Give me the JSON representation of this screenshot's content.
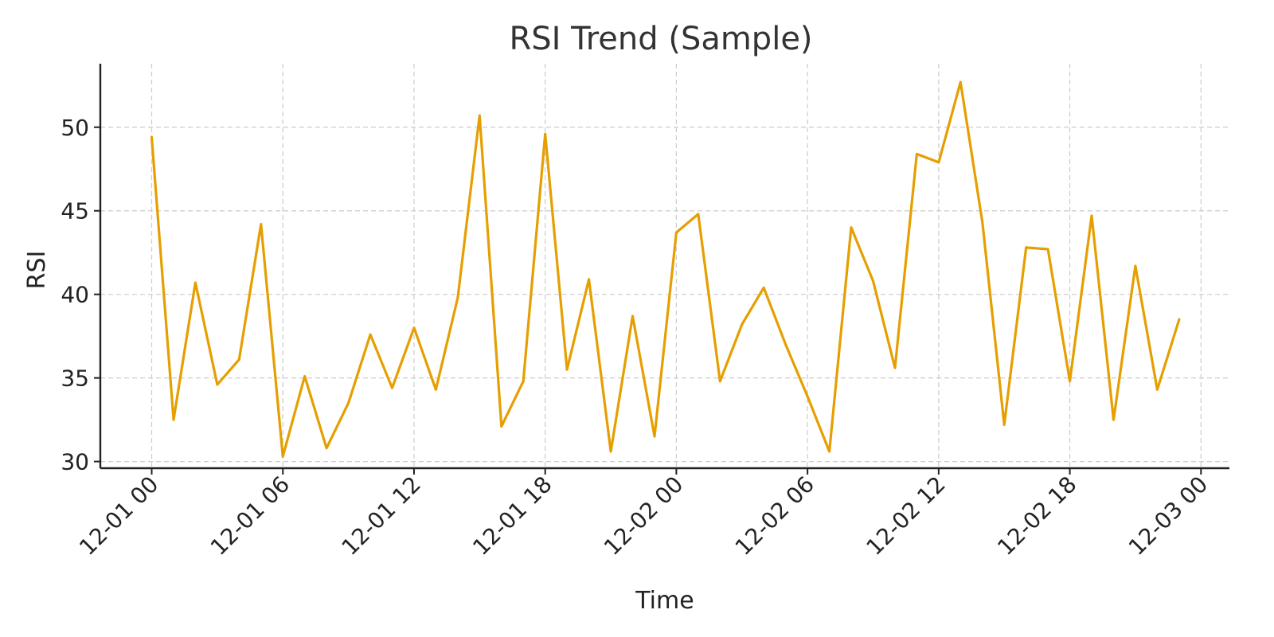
{
  "chart_data": {
    "type": "line",
    "title": "RSI Trend (Sample)",
    "xlabel": "Time",
    "ylabel": "RSI",
    "x_unit": "hour",
    "x_start": "2024-12-01 00:00",
    "x": [
      "12-01 00",
      "12-01 01",
      "12-01 02",
      "12-01 03",
      "12-01 04",
      "12-01 05",
      "12-01 06",
      "12-01 07",
      "12-01 08",
      "12-01 09",
      "12-01 10",
      "12-01 11",
      "12-01 12",
      "12-01 13",
      "12-01 14",
      "12-01 15",
      "12-01 16",
      "12-01 17",
      "12-01 18",
      "12-01 19",
      "12-01 20",
      "12-01 21",
      "12-01 22",
      "12-01 23",
      "12-02 00",
      "12-02 01",
      "12-02 02",
      "12-02 03",
      "12-02 04",
      "12-02 05",
      "12-02 06",
      "12-02 07",
      "12-02 08",
      "12-02 09",
      "12-02 10",
      "12-02 11",
      "12-02 12",
      "12-02 13",
      "12-02 14",
      "12-02 15",
      "12-02 16",
      "12-02 17",
      "12-02 18",
      "12-02 19",
      "12-02 20",
      "12-02 21",
      "12-02 22",
      "12-02 23"
    ],
    "series": [
      {
        "name": "",
        "color": "#E69F00",
        "values": [
          49.4,
          32.5,
          40.7,
          34.6,
          36.1,
          44.2,
          30.3,
          35.1,
          30.8,
          33.5,
          37.6,
          34.4,
          38.0,
          34.3,
          39.8,
          50.7,
          32.1,
          34.8,
          49.6,
          35.5,
          40.9,
          30.6,
          38.7,
          31.5,
          43.7,
          44.8,
          34.8,
          38.2,
          40.4,
          37.0,
          33.9,
          30.6,
          44.0,
          40.8,
          35.6,
          48.4,
          47.9,
          52.7,
          44.3,
          32.2,
          42.8,
          42.7,
          34.8,
          44.7,
          32.5,
          41.7,
          34.3,
          38.5
        ]
      }
    ],
    "xticks": [
      "12-01 00",
      "12-01 06",
      "12-01 12",
      "12-01 18",
      "12-02 00",
      "12-02 06",
      "12-02 12",
      "12-02 18",
      "12-03 00"
    ],
    "yticks": [
      "30",
      "35",
      "40",
      "45",
      "50"
    ],
    "ylim": [
      29.6,
      53.8
    ],
    "xlim_hours": [
      -2.35,
      49.3
    ],
    "grid": true,
    "legend": "none"
  }
}
